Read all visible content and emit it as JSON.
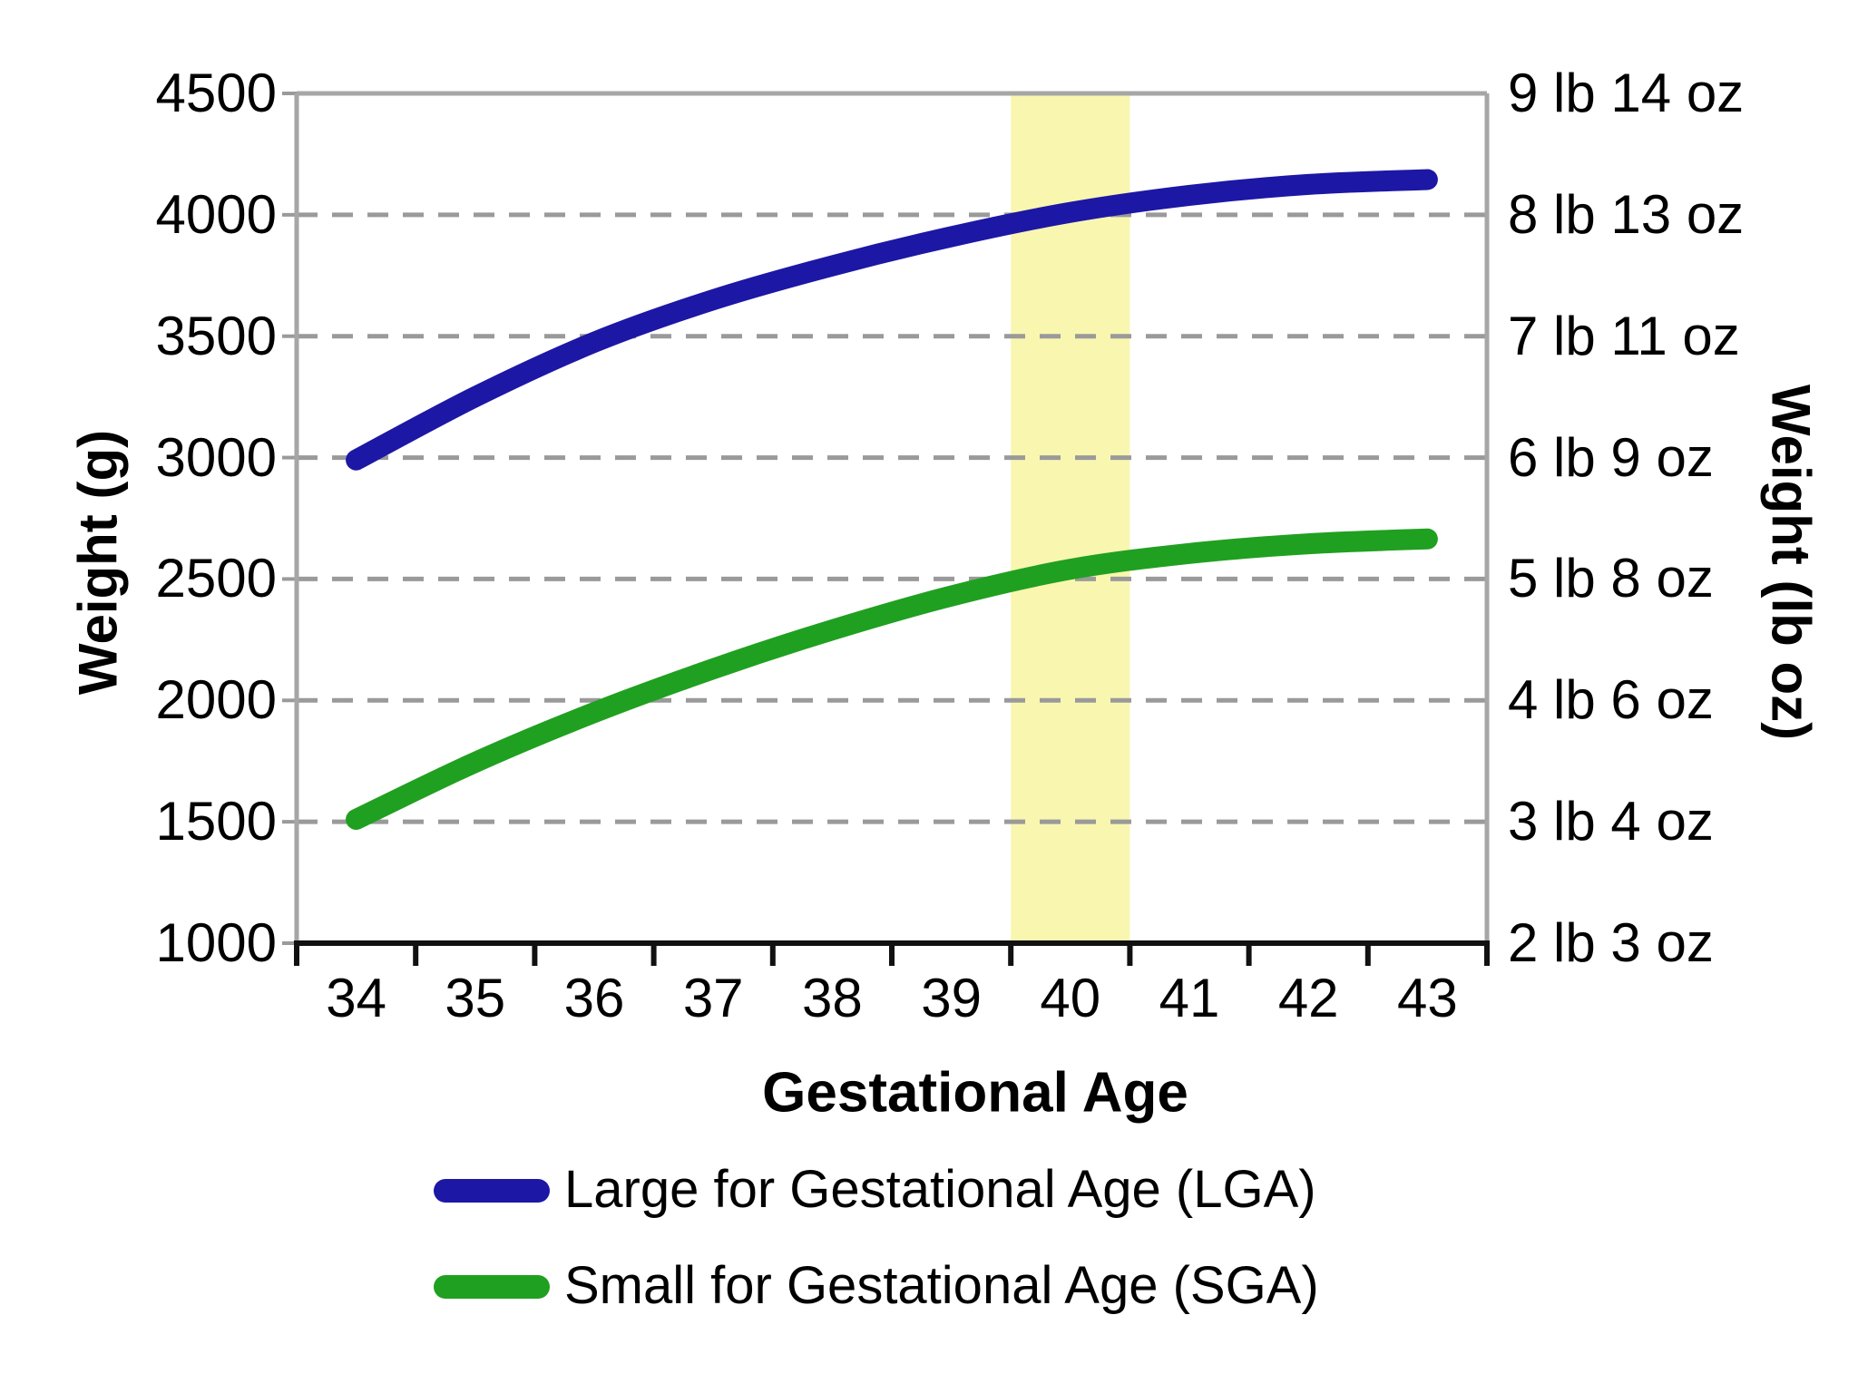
{
  "chart_data": {
    "type": "line",
    "title": "",
    "xlabel": "Gestational Age",
    "ylabel_left": "Weight (g)",
    "ylabel_right": "Weight (lb oz)",
    "xlim": [
      33.5,
      43.5
    ],
    "ylim": [
      1000,
      4500
    ],
    "x_ticks": [
      "34",
      "35",
      "36",
      "37",
      "38",
      "39",
      "40",
      "41",
      "42",
      "43"
    ],
    "y_ticks_left": [
      "4500",
      "4000",
      "3500",
      "3000",
      "2500",
      "2000",
      "1500",
      "1000"
    ],
    "y_tick_values": [
      4500,
      4000,
      3500,
      3000,
      2500,
      2000,
      1500,
      1000
    ],
    "y_ticks_right": [
      "9 lb 14 oz",
      "8 lb 13 oz",
      "7 lb 11 oz",
      "6 lb 9 oz",
      "5 lb 8 oz",
      "4 lb 6 oz",
      "3 lb 4 oz",
      "2 lb 3 oz"
    ],
    "gridlines_at": [
      4000,
      3500,
      3000,
      2500,
      2000,
      1500
    ],
    "grid": "dashed-horizontal",
    "legend_position": "bottom",
    "highlight_band": {
      "x_from": 39.5,
      "x_to": 40.5,
      "color": "#F9F6B0"
    },
    "series": [
      {
        "name": "Large for Gestational Age (LGA)",
        "color": "#1D17A5",
        "x": [
          34,
          35,
          36,
          37,
          38,
          39,
          40,
          41,
          42,
          43
        ],
        "values": [
          2990,
          3250,
          3475,
          3650,
          3790,
          3910,
          4010,
          4080,
          4125,
          4145
        ]
      },
      {
        "name": "Small for Gestational Age (SGA)",
        "color": "#20A020",
        "x": [
          34,
          35,
          36,
          37,
          38,
          39,
          40,
          41,
          42,
          43
        ],
        "values": [
          1510,
          1745,
          1950,
          2130,
          2290,
          2430,
          2540,
          2605,
          2645,
          2665
        ]
      }
    ]
  },
  "colors": {
    "background": "#FFFFFF",
    "gridline": "#9A9A9A",
    "plot_border": "#A6A6A6",
    "axis_line": "#111111",
    "text": "#000000"
  }
}
